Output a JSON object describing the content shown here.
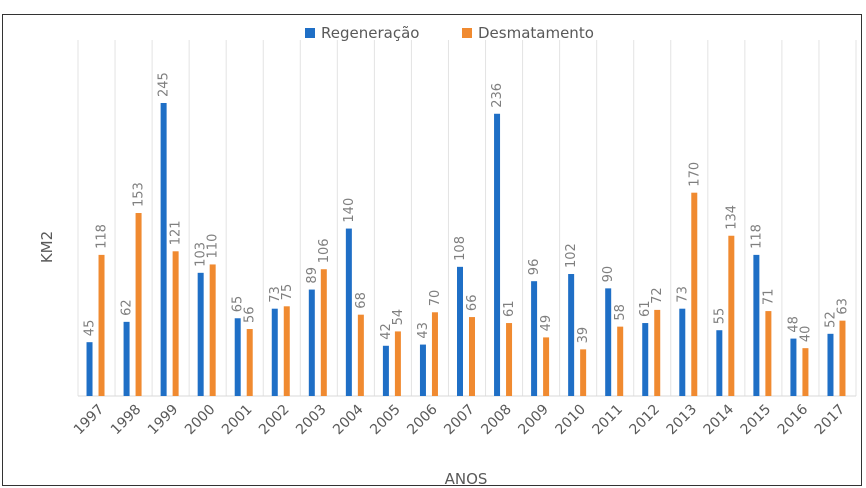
{
  "chart_data": {
    "type": "bar",
    "categories": [
      "1997",
      "1998",
      "1999",
      "2000",
      "2001",
      "2002",
      "2003",
      "2004",
      "2005",
      "2006",
      "2007",
      "2008",
      "2009",
      "2010",
      "2011",
      "2012",
      "2013",
      "2014",
      "2015",
      "2016",
      "2017"
    ],
    "series": [
      {
        "name": "Regeneração",
        "color": "#1f6fc6",
        "values": [
          45,
          62,
          245,
          103,
          65,
          73,
          89,
          140,
          42,
          43,
          108,
          236,
          96,
          102,
          90,
          61,
          73,
          55,
          118,
          48,
          52
        ]
      },
      {
        "name": "Desmatamento",
        "color": "#f08a30",
        "values": [
          118,
          153,
          121,
          110,
          56,
          75,
          106,
          68,
          54,
          70,
          66,
          61,
          49,
          39,
          58,
          72,
          170,
          134,
          71,
          40,
          63
        ]
      }
    ],
    "xlabel": "ANOS",
    "ylabel": "KM2",
    "ylim": [
      0,
      245
    ],
    "legend_position": "top-center",
    "grid": "vertical"
  }
}
